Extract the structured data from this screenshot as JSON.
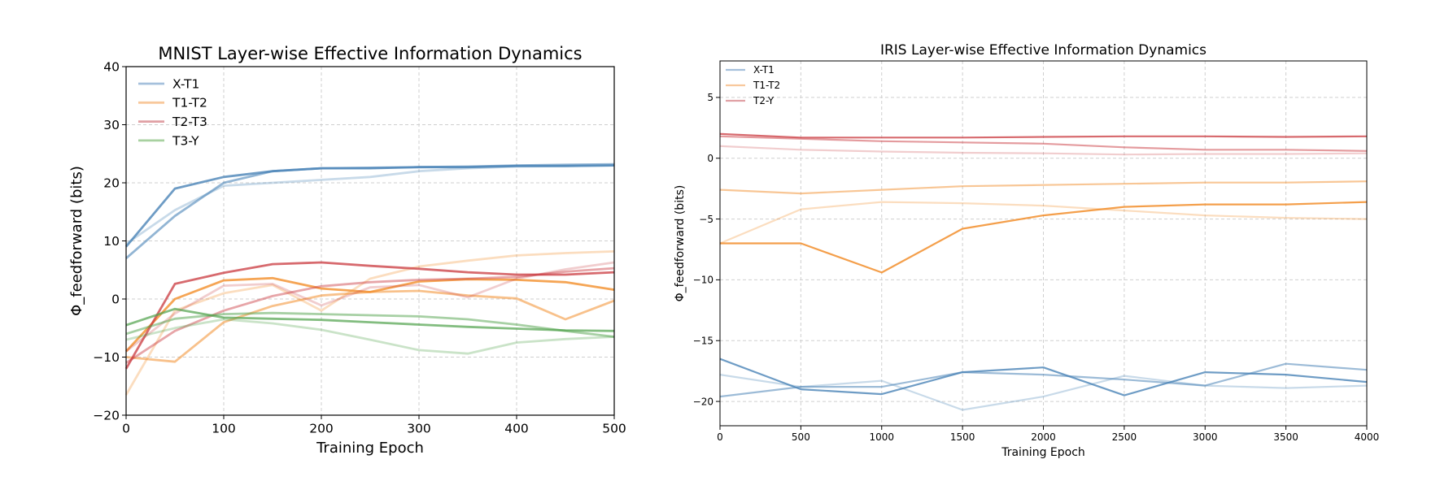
{
  "chart_data": [
    {
      "type": "line",
      "title": "MNIST Layer-wise Effective Information Dynamics",
      "xlabel": "Training Epoch",
      "ylabel": "Φ_feedforward (bits)",
      "xlim": [
        0,
        500
      ],
      "ylim": [
        -20,
        40
      ],
      "xticks": [
        0,
        100,
        200,
        300,
        400,
        500
      ],
      "yticks": [
        -20,
        -10,
        0,
        10,
        20,
        30,
        40
      ],
      "grid": true,
      "legend_position": "top-left",
      "x": [
        0,
        50,
        100,
        150,
        200,
        250,
        300,
        350,
        400,
        450,
        500
      ],
      "legend": [
        {
          "label": "X-T1",
          "color": "#a5c0dc"
        },
        {
          "label": "T1-T2",
          "color": "#f8c89c"
        },
        {
          "label": "T2-T3",
          "color": "#e0a0a4"
        },
        {
          "label": "T3-Y",
          "color": "#a8d1a0"
        }
      ],
      "series": [
        {
          "group": "X-T1",
          "color": "#4a83b7",
          "opacity": 0.8,
          "values": [
            9,
            19,
            21,
            22,
            22.5,
            22.5,
            22.7,
            22.7,
            22.9,
            22.9,
            23
          ]
        },
        {
          "group": "X-T1",
          "color": "#4a83b7",
          "opacity": 0.6,
          "values": [
            7,
            14.3,
            20,
            22,
            22.5,
            22.6,
            22.7,
            22.8,
            23,
            23.1,
            23.2
          ]
        },
        {
          "group": "X-T1",
          "color": "#4a83b7",
          "opacity": 0.3,
          "values": [
            9.5,
            15.3,
            19.5,
            20,
            20.5,
            21,
            22,
            22.5,
            22.8,
            22.9,
            23
          ]
        },
        {
          "group": "T1-T2",
          "color": "#f28e2b",
          "opacity": 0.8,
          "values": [
            -9,
            0,
            3.2,
            3.6,
            1.8,
            1.2,
            3,
            3.4,
            3.3,
            2.9,
            1.6
          ]
        },
        {
          "group": "T1-T2",
          "color": "#f28e2b",
          "opacity": 0.55,
          "values": [
            -10,
            -10.8,
            -4,
            -1.2,
            0.6,
            1.2,
            1.4,
            0.6,
            0.1,
            -3.5,
            -0.3
          ]
        },
        {
          "group": "T1-T2",
          "color": "#f28e2b",
          "opacity": 0.3,
          "values": [
            -16.5,
            -2,
            1,
            2.4,
            -2,
            3.5,
            5.6,
            6.6,
            7.5,
            7.9,
            8.2
          ]
        },
        {
          "group": "T2-T3",
          "color": "#c9383d",
          "opacity": 0.75,
          "values": [
            -12,
            2.6,
            4.5,
            6,
            6.3,
            5.7,
            5.2,
            4.6,
            4.2,
            4.2,
            4.6
          ]
        },
        {
          "group": "T2-T3",
          "color": "#c9383d",
          "opacity": 0.45,
          "values": [
            -11,
            -5.5,
            -2,
            0.5,
            2.2,
            2.9,
            3.3,
            3.5,
            3.8,
            4.7,
            5.3
          ]
        },
        {
          "group": "T2-T3",
          "color": "#c9383d",
          "opacity": 0.25,
          "values": [
            -9,
            -2.5,
            2.3,
            2.6,
            -1.1,
            2,
            2.4,
            0.3,
            3.5,
            5.1,
            6.3
          ]
        },
        {
          "group": "T3-Y",
          "color": "#4fa14a",
          "opacity": 0.7,
          "values": [
            -4.5,
            -1.7,
            -3.2,
            -3.4,
            -3.6,
            -4,
            -4.4,
            -4.8,
            -5.1,
            -5.4,
            -5.5
          ]
        },
        {
          "group": "T3-Y",
          "color": "#4fa14a",
          "opacity": 0.5,
          "values": [
            -6,
            -3.4,
            -2.6,
            -2.4,
            -2.6,
            -2.8,
            -3,
            -3.5,
            -4.4,
            -5.5,
            -6.5
          ]
        },
        {
          "group": "T3-Y",
          "color": "#4fa14a",
          "opacity": 0.3,
          "values": [
            -7,
            -5,
            -3.5,
            -4.2,
            -5.3,
            -7,
            -8.8,
            -9.4,
            -7.5,
            -6.9,
            -6.5
          ]
        }
      ]
    },
    {
      "type": "line",
      "title": "IRIS Layer-wise Effective Information Dynamics",
      "xlabel": "Training Epoch",
      "ylabel": "Φ_feedforward (bits)",
      "xlim": [
        0,
        4000
      ],
      "ylim": [
        -22,
        8
      ],
      "xticks": [
        0,
        500,
        1000,
        1500,
        2000,
        2500,
        3000,
        3500,
        4000
      ],
      "yticks": [
        -20,
        -15,
        -10,
        -5,
        0,
        5
      ],
      "grid": true,
      "legend_position": "top-left",
      "x": [
        0,
        500,
        1000,
        1500,
        2000,
        2500,
        3000,
        3500,
        4000
      ],
      "legend": [
        {
          "label": "X-T1",
          "color": "#a5c0dc"
        },
        {
          "label": "T1-T2",
          "color": "#f8c89c"
        },
        {
          "label": "T2-Y",
          "color": "#e0a0a4"
        }
      ],
      "series": [
        {
          "group": "X-T1",
          "color": "#4a83b7",
          "opacity": 0.8,
          "values": [
            -16.5,
            -19,
            -19.4,
            -17.6,
            -17.2,
            -19.5,
            -17.6,
            -17.8,
            -18.4
          ]
        },
        {
          "group": "X-T1",
          "color": "#4a83b7",
          "opacity": 0.55,
          "values": [
            -19.6,
            -18.8,
            -18.8,
            -17.6,
            -17.8,
            -18.2,
            -18.7,
            -16.9,
            -17.4
          ]
        },
        {
          "group": "X-T1",
          "color": "#4a83b7",
          "opacity": 0.3,
          "values": [
            -17.8,
            -18.8,
            -18.3,
            -20.7,
            -19.6,
            -17.9,
            -18.7,
            -18.9,
            -18.7
          ]
        },
        {
          "group": "T1-T2",
          "color": "#f28e2b",
          "opacity": 0.85,
          "values": [
            -7,
            -7,
            -9.4,
            -5.8,
            -4.7,
            -4,
            -3.8,
            -3.8,
            -3.6
          ]
        },
        {
          "group": "T1-T2",
          "color": "#f28e2b",
          "opacity": 0.5,
          "values": [
            -2.6,
            -2.9,
            -2.6,
            -2.3,
            -2.2,
            -2.1,
            -2,
            -2,
            -1.9
          ]
        },
        {
          "group": "T1-T2",
          "color": "#f28e2b",
          "opacity": 0.3,
          "values": [
            -7,
            -4.2,
            -3.6,
            -3.7,
            -3.9,
            -4.3,
            -4.7,
            -4.9,
            -5
          ]
        },
        {
          "group": "T2-Y",
          "color": "#c9383d",
          "opacity": 0.75,
          "values": [
            2,
            1.7,
            1.7,
            1.7,
            1.75,
            1.8,
            1.8,
            1.75,
            1.8
          ]
        },
        {
          "group": "T2-Y",
          "color": "#c9383d",
          "opacity": 0.5,
          "values": [
            1.8,
            1.6,
            1.4,
            1.3,
            1.2,
            0.9,
            0.7,
            0.7,
            0.6
          ]
        },
        {
          "group": "T2-Y",
          "color": "#c9383d",
          "opacity": 0.25,
          "values": [
            1,
            0.7,
            0.55,
            0.45,
            0.4,
            0.3,
            0.35,
            0.35,
            0.4
          ]
        }
      ]
    }
  ]
}
